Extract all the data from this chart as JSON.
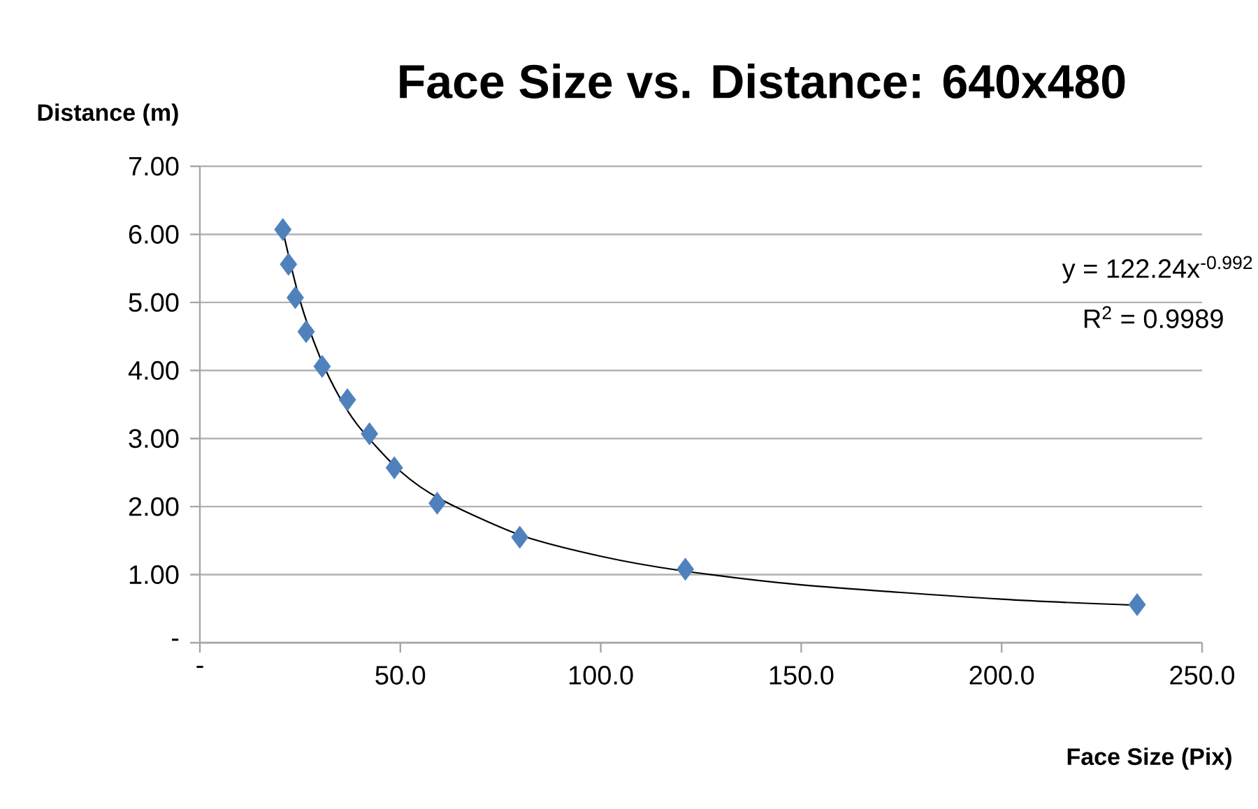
{
  "chart_data": {
    "type": "scatter",
    "title": "Face Size vs. Distance: 640x480",
    "xlabel": "Face Size (Pix)",
    "ylabel": "Distance (m)",
    "annotations": [
      "y = 122.24x$^{-0.992}$",
      "R$^{2}$ = 0.9989"
    ],
    "series": [
      {
        "color": "#4f81bd",
        "x": [
          20.7,
          22.1,
          23.8,
          26.5,
          30.5,
          36.8,
          42.3,
          48.5,
          59.2,
          79.8,
          121.1,
          233.8
        ],
        "values": [
          6.07,
          5.56,
          5.07,
          4.57,
          4.06,
          3.57,
          3.07,
          2.57,
          2.05,
          1.55,
          1.08,
          0.56
        ]
      },
      {
        "type": "line",
        "color": "#000000",
        "marker": "none",
        "x": [
          20.7,
          25,
          30,
          35,
          40,
          50,
          60,
          80,
          100,
          120,
          150,
          200,
          234
        ],
        "values": [
          6.05,
          5.02,
          4.19,
          3.59,
          3.15,
          2.52,
          2.11,
          1.58,
          1.27,
          1.06,
          0.85,
          0.64,
          0.55
        ]
      }
    ],
    "marker": "diamond",
    "grid": "y",
    "xlim": [
      0,
      250
    ],
    "ylim": [
      0,
      7
    ],
    "xticks": [
      {
        "value": 0,
        "label": "-"
      },
      {
        "value": 50,
        "label": "50.0"
      },
      {
        "value": 100,
        "label": "100.0"
      },
      {
        "value": 150,
        "label": "150.0"
      },
      {
        "value": 200,
        "label": "200.0"
      },
      {
        "value": 250,
        "label": "250.0"
      }
    ],
    "yticks": [
      {
        "value": 0,
        "label": "-"
      },
      {
        "value": 1,
        "label": "1.00"
      },
      {
        "value": 2,
        "label": "2.00"
      },
      {
        "value": 3,
        "label": "3.00"
      },
      {
        "value": 4,
        "label": "4.00"
      },
      {
        "value": 5,
        "label": "5.00"
      },
      {
        "value": 6,
        "label": "6.00"
      },
      {
        "value": 7,
        "label": "7.00"
      }
    ]
  }
}
